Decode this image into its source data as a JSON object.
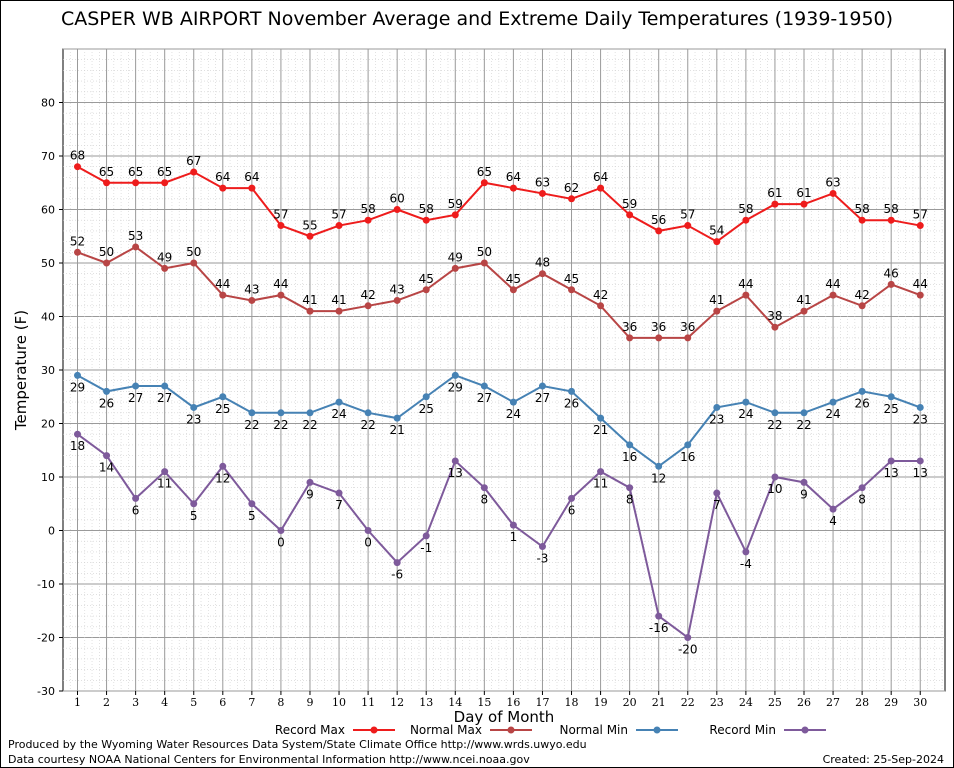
{
  "chart_data": {
    "type": "line",
    "title": "CASPER WB AIRPORT November Average and Extreme Daily Temperatures (1939-1950)",
    "xlabel": "Day of Month",
    "ylabel": "Temperature (F)",
    "ylim": [
      -30,
      90
    ],
    "yticks": [
      -30,
      -20,
      -10,
      0,
      10,
      20,
      30,
      40,
      50,
      60,
      70,
      80
    ],
    "x": [
      1,
      2,
      3,
      4,
      5,
      6,
      7,
      8,
      9,
      10,
      11,
      12,
      13,
      14,
      15,
      16,
      17,
      18,
      19,
      20,
      21,
      22,
      23,
      24,
      25,
      26,
      27,
      28,
      29,
      30
    ],
    "grid": true,
    "legend_position": "bottom",
    "series": [
      {
        "name": "Record Max",
        "color": "#ee1c1c",
        "label_pos": "above",
        "values": [
          68,
          65,
          65,
          65,
          67,
          64,
          64,
          57,
          55,
          57,
          58,
          60,
          58,
          59,
          65,
          64,
          63,
          62,
          64,
          59,
          56,
          57,
          54,
          58,
          61,
          61,
          63,
          58,
          58,
          57
        ]
      },
      {
        "name": "Normal Max",
        "color": "#b84545",
        "label_pos": "above",
        "values": [
          52,
          50,
          53,
          49,
          50,
          44,
          43,
          44,
          41,
          41,
          42,
          43,
          45,
          49,
          50,
          45,
          48,
          45,
          42,
          36,
          36,
          36,
          41,
          44,
          38,
          41,
          44,
          42,
          46,
          44
        ]
      },
      {
        "name": "Normal Min",
        "color": "#4682b4",
        "label_pos": "below",
        "values": [
          29,
          26,
          27,
          27,
          23,
          25,
          22,
          22,
          22,
          24,
          22,
          21,
          25,
          29,
          27,
          24,
          27,
          26,
          21,
          16,
          12,
          16,
          23,
          24,
          22,
          22,
          24,
          26,
          25,
          23
        ]
      },
      {
        "name": "Record Min",
        "color": "#7e5a9b",
        "label_pos": "below",
        "values": [
          18,
          14,
          6,
          11,
          5,
          12,
          5,
          0,
          9,
          7,
          0,
          -6,
          -1,
          13,
          8,
          1,
          -3,
          6,
          11,
          8,
          -16,
          -20,
          7,
          -4,
          10,
          9,
          4,
          8,
          13,
          13
        ]
      }
    ]
  },
  "footer": {
    "produced_by": "Produced by the Wyoming Water Resources Data System/State Climate Office http://www.wrds.uwyo.edu",
    "courtesy": "Data courtesy NOAA National Centers for Environmental Information http://www.ncei.noaa.gov",
    "created": "Created:  25-Sep-2024"
  }
}
